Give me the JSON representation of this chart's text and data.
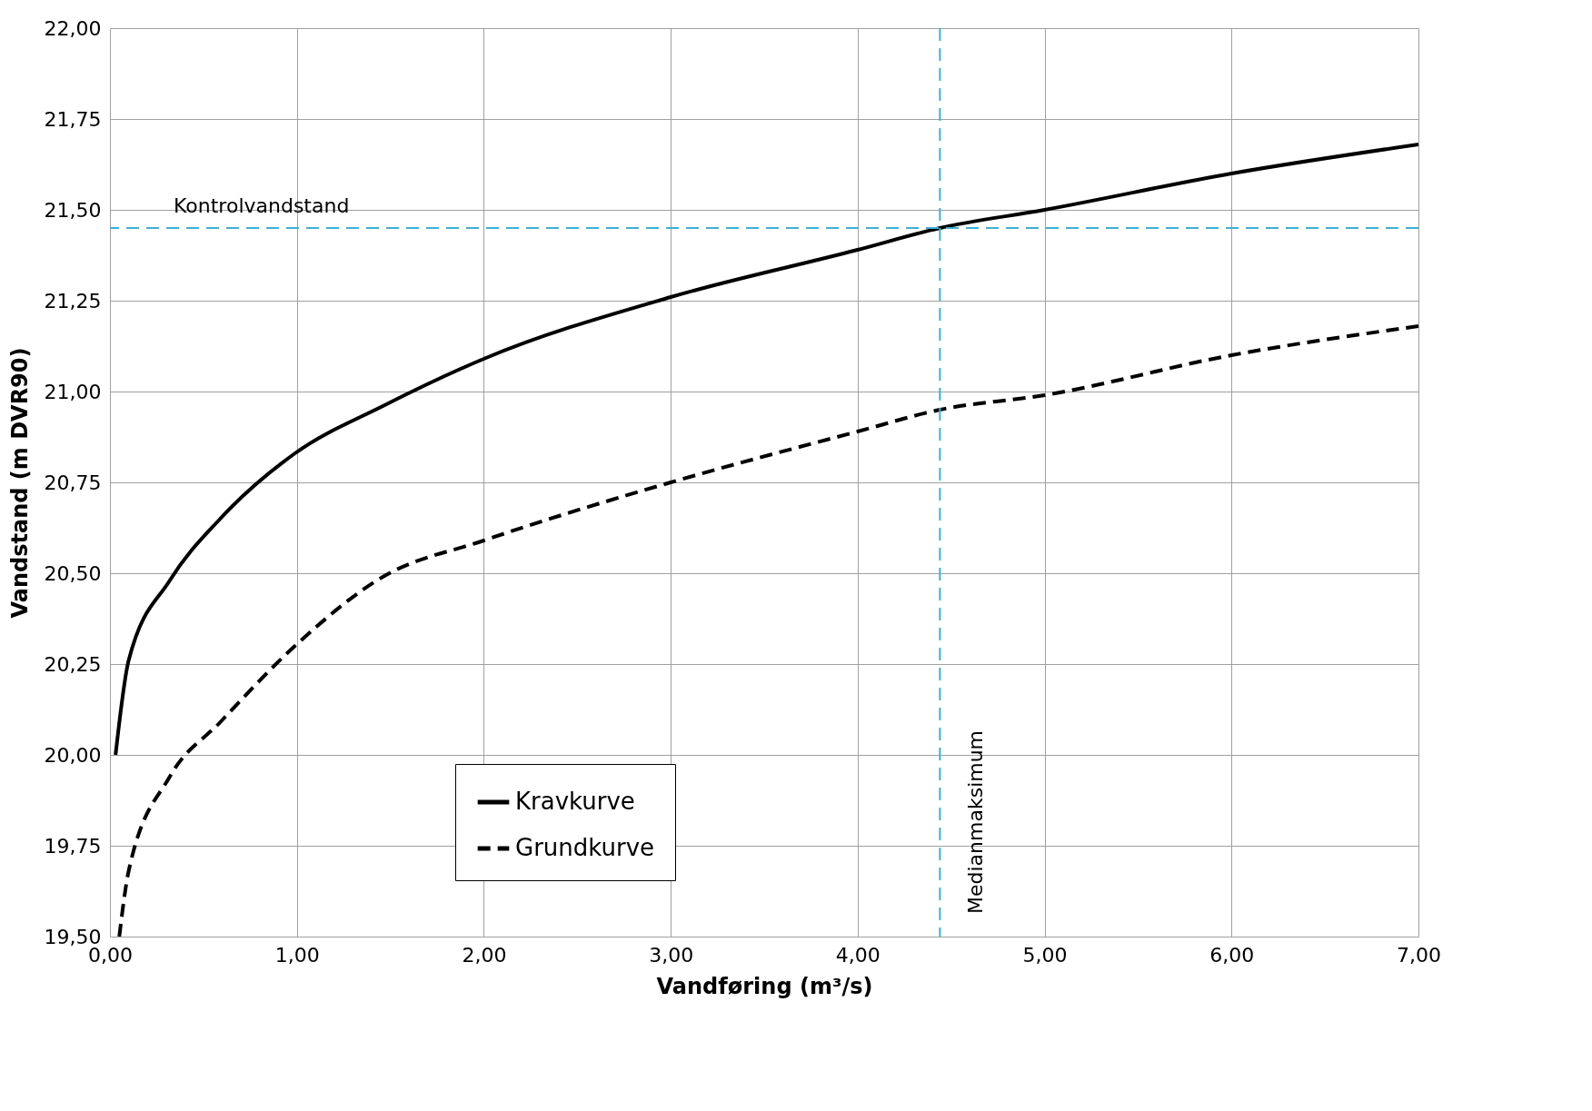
{
  "chart_data": {
    "type": "line",
    "xlabel": "Vandføring (m³/s)",
    "ylabel": "Vandstand (m DVR90)",
    "xlim": [
      0,
      7
    ],
    "ylim": [
      19.5,
      22
    ],
    "xticks": [
      {
        "value": 0,
        "label": "0,00"
      },
      {
        "value": 1,
        "label": "1,00"
      },
      {
        "value": 2,
        "label": "2,00"
      },
      {
        "value": 3,
        "label": "3,00"
      },
      {
        "value": 4,
        "label": "4,00"
      },
      {
        "value": 5,
        "label": "5,00"
      },
      {
        "value": 6,
        "label": "6,00"
      },
      {
        "value": 7,
        "label": "7,00"
      }
    ],
    "yticks": [
      {
        "value": 19.5,
        "label": "19,50"
      },
      {
        "value": 19.75,
        "label": "19,75"
      },
      {
        "value": 20,
        "label": "20,00"
      },
      {
        "value": 20.25,
        "label": "20,25"
      },
      {
        "value": 20.5,
        "label": "20,50"
      },
      {
        "value": 20.75,
        "label": "20,75"
      },
      {
        "value": 21,
        "label": "21,00"
      },
      {
        "value": 21.25,
        "label": "21,25"
      },
      {
        "value": 21.5,
        "label": "21,50"
      },
      {
        "value": 21.75,
        "label": "21,75"
      },
      {
        "value": 22,
        "label": "22,00"
      }
    ],
    "grid": true,
    "legend": "bottom left",
    "series": [
      {
        "name": "Kravkurve",
        "color": "#000000",
        "line_style": "solid",
        "x": [
          0.03,
          0.1,
          0.32,
          0.59,
          0.99,
          1.46,
          2.0,
          3.0,
          4.0,
          4.44,
          5.0,
          6.0,
          7.0
        ],
        "values": [
          20.0,
          20.26,
          20.48,
          20.65,
          20.83,
          20.96,
          21.09,
          21.26,
          21.39,
          21.45,
          21.5,
          21.6,
          21.68
        ]
      },
      {
        "name": "Grundkurve",
        "color": "#000000",
        "line_style": "dashed",
        "x": [
          0.05,
          0.1,
          0.32,
          0.59,
          0.99,
          1.46,
          2.0,
          3.0,
          4.0,
          4.44,
          5.0,
          6.0,
          7.0
        ],
        "values": [
          19.5,
          19.68,
          19.94,
          20.09,
          20.3,
          20.49,
          20.59,
          20.75,
          20.89,
          20.95,
          20.99,
          21.1,
          21.18
        ]
      }
    ],
    "ref_lines": [
      {
        "axis": "y",
        "value": 21.45,
        "label": "Kontrolvandstand",
        "color": "#3fb0d0",
        "line_style": "dashed"
      },
      {
        "axis": "x",
        "value": 4.44,
        "label": "Medianmaksimum",
        "color": "#3fb0d0",
        "line_style": "dashed"
      }
    ]
  }
}
